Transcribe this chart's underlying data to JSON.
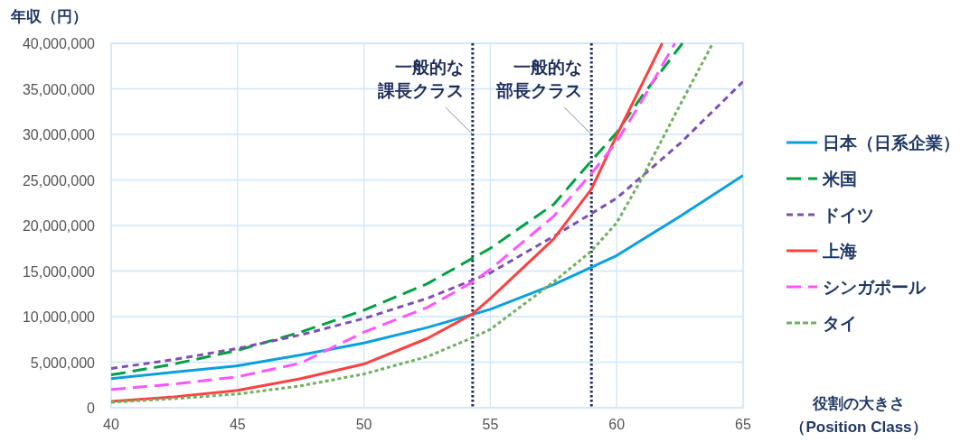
{
  "chart_data": {
    "type": "line",
    "ylabel": "年収（円）",
    "xlabel": "役割の大きさ（Position Class）",
    "xlim": [
      40,
      65
    ],
    "xticks": [
      40,
      45,
      50,
      55,
      60,
      65
    ],
    "ylim": [
      0,
      40000000
    ],
    "yticks": [
      {
        "value": 0,
        "label": "0"
      },
      {
        "value": 5000000,
        "label": "5,000,000"
      },
      {
        "value": 10000000,
        "label": "10,000,000"
      },
      {
        "value": 15000000,
        "label": "15,000,000"
      },
      {
        "value": 20000000,
        "label": "20,000,000"
      },
      {
        "value": 25000000,
        "label": "25,000,000"
      },
      {
        "value": 30000000,
        "label": "30,000,000"
      },
      {
        "value": 35000000,
        "label": "35,000,000"
      },
      {
        "value": 40000000,
        "label": "40,000,000"
      }
    ],
    "grid": true,
    "legend": "right",
    "series": [
      {
        "name": "日本（日系企業）",
        "color": "#0aa0e0",
        "line_style": "solid",
        "x": [
          40,
          42.5,
          45,
          47.5,
          50,
          52.5,
          55,
          57.5,
          60,
          62.5,
          65
        ],
        "values": [
          3200000,
          3900000,
          4600000,
          5800000,
          7100000,
          8800000,
          10800000,
          13500000,
          16700000,
          21000000,
          25500000
        ]
      },
      {
        "name": "米国",
        "color": "#00a040",
        "line_style": "dashed",
        "x": [
          40,
          42.5,
          45,
          47.5,
          50,
          52.5,
          55,
          57.5,
          59,
          60,
          61,
          62,
          62.6
        ],
        "values": [
          3600000,
          4800000,
          6300000,
          8300000,
          10700000,
          13600000,
          17500000,
          22300000,
          27100000,
          30200000,
          34200000,
          37800000,
          40000000
        ]
      },
      {
        "name": "ドイツ",
        "color": "#7e4fb0",
        "line_style": "dashed",
        "x": [
          40,
          42.5,
          45,
          47.5,
          50,
          52.5,
          55,
          57.5,
          60,
          62.5,
          65
        ],
        "values": [
          4300000,
          5300000,
          6500000,
          8000000,
          9800000,
          12000000,
          14800000,
          18800000,
          23000000,
          29000000,
          35800000
        ]
      },
      {
        "name": "上海",
        "color": "#ff4040",
        "line_style": "solid",
        "x": [
          40,
          42.5,
          45,
          47.5,
          50,
          52.5,
          54.3,
          55,
          57.5,
          59,
          60,
          61,
          61.8
        ],
        "values": [
          700000,
          1200000,
          1900000,
          3200000,
          4800000,
          7600000,
          10300000,
          12000000,
          18500000,
          24000000,
          29900000,
          35500000,
          40000000
        ]
      },
      {
        "name": "シンガポール",
        "color": "#ff55ff",
        "line_style": "dashed",
        "x": [
          40,
          42.5,
          45,
          47.5,
          50,
          52.5,
          54.3,
          55,
          57.5,
          59,
          60,
          61,
          62.3
        ],
        "values": [
          2000000,
          2600000,
          3400000,
          4900000,
          8300000,
          11000000,
          13800000,
          15200000,
          21000000,
          25700000,
          29200000,
          33700000,
          40000000
        ]
      },
      {
        "name": "タイ",
        "color": "#70b060",
        "line_style": "dotted",
        "x": [
          40,
          42.5,
          45,
          47.5,
          50,
          52.5,
          54.3,
          55,
          57.5,
          59,
          60,
          61,
          62.5,
          63.8
        ],
        "values": [
          600000,
          1000000,
          1500000,
          2400000,
          3700000,
          5600000,
          7700000,
          8600000,
          13800000,
          17200000,
          20300000,
          25200000,
          33200000,
          40000000
        ]
      }
    ],
    "ref_lines": [
      {
        "axis": "x",
        "value": 54.3,
        "label": "一般的な課長クラス",
        "color": "#1f2d5a",
        "line_style": "dotted"
      },
      {
        "axis": "x",
        "value": 59,
        "label": "一般的な部長クラス",
        "color": "#1f2d5a",
        "line_style": "dotted"
      }
    ]
  }
}
